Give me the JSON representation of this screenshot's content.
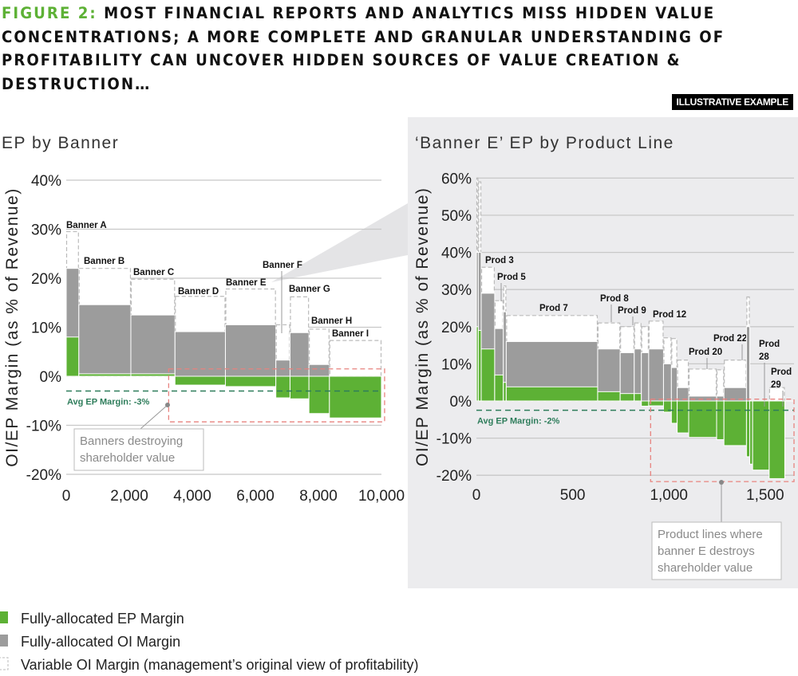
{
  "header": {
    "figure_label": "FIGURE 2:",
    "title": "MOST FINANCIAL REPORTS AND ANALYTICS MISS HIDDEN VALUE CONCENTRATIONS; A MORE COMPLETE AND GRANULAR UNDERSTANDING OF PROFITABILITY CAN UNCOVER HIDDEN SOURCES OF VALUE CREATION & DESTRUCTION…",
    "badge": "ILLUSTRATIVE EXAMPLE"
  },
  "colors": {
    "ep": "#5db135",
    "oi": "#9c9c9c",
    "variable": "#bbbbbb",
    "avg": "#2e7d5b",
    "highlight": "#e8837f",
    "panel": "#ececee"
  },
  "legend": [
    {
      "label": "Fully-allocated EP Margin",
      "color": "#5db135"
    },
    {
      "label": "Fully-allocated OI Margin",
      "color": "#9c9c9c"
    },
    {
      "label": "Variable OI Margin (management’s original view of profitability)",
      "color": "#ffffff"
    }
  ],
  "chart_data": [
    {
      "type": "bar",
      "title": "EP by Banner",
      "ylabel": "OI/EP Margin (as % of Revenue)",
      "xlabel": "",
      "xlim": [
        0,
        10000
      ],
      "ylim": [
        -20,
        40
      ],
      "xticks": [
        "0",
        "2,000",
        "4,000",
        "6,000",
        "8,000",
        "10,000"
      ],
      "yticks": [
        "40%",
        "30%",
        "20%",
        "10%",
        "0%",
        "-10%",
        "-20%"
      ],
      "grid": true,
      "avg_ep": -3,
      "avg_label": "Avg EP Margin: -3%",
      "callout": [
        "Banners destroying",
        "shareholder value"
      ],
      "bars": [
        {
          "label": "Banner A",
          "start": 0,
          "end": 400,
          "variable_oi": 29.5,
          "oi": 22,
          "ep": 8
        },
        {
          "label": "Banner B",
          "start": 400,
          "end": 2050,
          "variable_oi": 22,
          "oi": 14.6,
          "ep": 0.5
        },
        {
          "label": "Banner C",
          "start": 2050,
          "end": 3450,
          "variable_oi": 19.8,
          "oi": 12.5,
          "ep": 0.5
        },
        {
          "label": "Banner D",
          "start": 3450,
          "end": 5050,
          "variable_oi": 16.3,
          "oi": 9.1,
          "ep": -1.8
        },
        {
          "label": "Banner E",
          "start": 5050,
          "end": 6650,
          "variable_oi": 17.8,
          "oi": 10.5,
          "ep": -2.1
        },
        {
          "label": "Banner F",
          "start": 6650,
          "end": 7100,
          "variable_oi": 10.5,
          "oi": 3.3,
          "ep": -4.4
        },
        {
          "label": "Banner G",
          "start": 7100,
          "end": 7700,
          "variable_oi": 16.2,
          "oi": 8.9,
          "ep": -4.6
        },
        {
          "label": "Banner H",
          "start": 7700,
          "end": 8350,
          "variable_oi": 9.6,
          "oi": 2.4,
          "ep": -7.6
        },
        {
          "label": "Banner I",
          "start": 8350,
          "end": 10000,
          "variable_oi": 7.3,
          "oi": 0,
          "ep": -8.5
        }
      ]
    },
    {
      "type": "bar",
      "title": "‘Banner E’ EP by Product Line",
      "ylabel": "OI/EP Margin (as % of Revenue)",
      "xlabel": "",
      "xlim": [
        0,
        1650
      ],
      "ylim": [
        -20,
        60
      ],
      "xticks": [
        "0",
        "500",
        "1,000",
        "1,500"
      ],
      "yticks": [
        "60%",
        "50%",
        "40%",
        "30%",
        "20%",
        "10%",
        "0%",
        "-10%",
        "-20%"
      ],
      "grid": true,
      "avg_ep": -2.5,
      "avg_label": "Avg EP Margin: -2%",
      "callout": [
        "Product lines where",
        "banner E destroys",
        "shareholder value"
      ],
      "bars": [
        {
          "label": "",
          "start": 0,
          "end": 10,
          "variable_oi": 60,
          "oi": 40,
          "ep": 20
        },
        {
          "label": "",
          "start": 10,
          "end": 25,
          "variable_oi": 59,
          "oi": 40,
          "ep": 19
        },
        {
          "label": "Prod 3",
          "start": 25,
          "end": 95,
          "variable_oi": 36,
          "oi": 29,
          "ep": 14
        },
        {
          "label": "Prod 5",
          "start": 95,
          "end": 140,
          "variable_oi": 27,
          "oi": 19.5,
          "ep": 7
        },
        {
          "label": "",
          "start": 140,
          "end": 155,
          "variable_oi": 31,
          "oi": 24,
          "ep": 5
        },
        {
          "label": "Prod 7",
          "start": 155,
          "end": 630,
          "variable_oi": 23,
          "oi": 16,
          "ep": 3.8
        },
        {
          "label": "Prod 8",
          "start": 630,
          "end": 747,
          "variable_oi": 21,
          "oi": 14,
          "ep": 2.5
        },
        {
          "label": "Prod 9",
          "start": 747,
          "end": 820,
          "variable_oi": 20,
          "oi": 13,
          "ep": 2
        },
        {
          "label": "",
          "start": 820,
          "end": 857,
          "variable_oi": 21,
          "oi": 14,
          "ep": 2
        },
        {
          "label": "",
          "start": 857,
          "end": 895,
          "variable_oi": 20,
          "oi": 13,
          "ep": -1.4
        },
        {
          "label": "Prod 12",
          "start": 895,
          "end": 972,
          "variable_oi": 21.5,
          "oi": 14,
          "ep": -1.3
        },
        {
          "label": "",
          "start": 972,
          "end": 1013,
          "variable_oi": 17,
          "oi": 10,
          "ep": -3
        },
        {
          "label": "",
          "start": 1013,
          "end": 1043,
          "variable_oi": 16.8,
          "oi": 9,
          "ep": -6
        },
        {
          "label": "",
          "start": 1043,
          "end": 1103,
          "variable_oi": 11,
          "oi": 3.6,
          "ep": -8.6
        },
        {
          "label": "Prod 20",
          "start": 1103,
          "end": 1248,
          "variable_oi": 8.6,
          "oi": 1.3,
          "ep": -9.8
        },
        {
          "label": "",
          "start": 1248,
          "end": 1286,
          "variable_oi": 8.4,
          "oi": 1.3,
          "ep": -10.4
        },
        {
          "label": "Prod 22",
          "start": 1286,
          "end": 1403,
          "variable_oi": 11,
          "oi": 3.6,
          "ep": -12
        },
        {
          "label": "",
          "start": 1403,
          "end": 1420,
          "variable_oi": 28,
          "oi": 20,
          "ep": -15
        },
        {
          "label": "",
          "start": 1420,
          "end": 1435,
          "variable_oi": 0,
          "oi": 0,
          "ep": -17
        },
        {
          "label": "Prod 28",
          "start": 1435,
          "end": 1521,
          "variable_oi": 0,
          "oi": 0,
          "ep": -18.6
        },
        {
          "label": "Prod 29",
          "start": 1521,
          "end": 1602,
          "variable_oi": 3.6,
          "oi": 0,
          "ep": -20.9
        }
      ]
    }
  ]
}
